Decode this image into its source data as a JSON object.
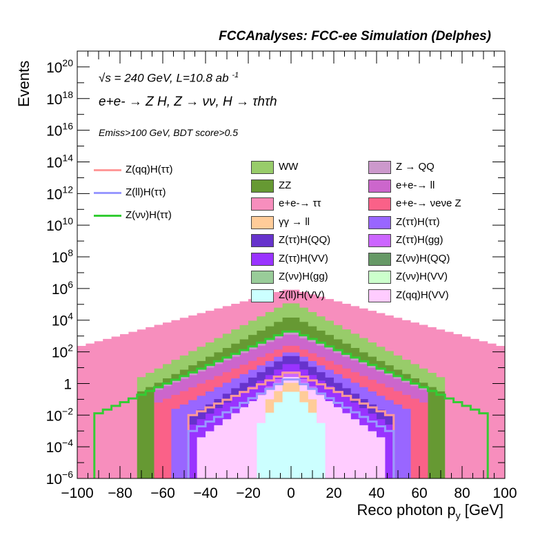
{
  "header": "FCCAnalyses: FCC-ee Simulation (Delphes)",
  "info": {
    "line1": "√s = 240 GeV, L=10.8 ab ",
    "line1_sup": "-1",
    "line2": "e+e- → Z H, Z → νν, H → τhτh",
    "line3": "Emiss>100 GeV, BDT score>0.5"
  },
  "chart_data": {
    "type": "histogram-stacked-log",
    "xlabel": "Reco photon p",
    "xlabel_sub": "y",
    "xlabel_unit": " [GeV]",
    "ylabel": "Events",
    "xlim": [
      -100,
      100
    ],
    "ylim_log10": [
      -6,
      21
    ],
    "xticks": [
      "−100",
      "−80",
      "−60",
      "−40",
      "−20",
      "0",
      "20",
      "40",
      "60",
      "80",
      "100"
    ],
    "yticks": [
      {
        "log": 20,
        "label": "10",
        "sup": "20"
      },
      {
        "log": 18,
        "label": "10",
        "sup": "18"
      },
      {
        "log": 16,
        "label": "10",
        "sup": "16"
      },
      {
        "log": 14,
        "label": "10",
        "sup": "14"
      },
      {
        "log": 12,
        "label": "10",
        "sup": "12"
      },
      {
        "log": 10,
        "label": "10",
        "sup": "10"
      },
      {
        "log": 8,
        "label": "10",
        "sup": "8"
      },
      {
        "log": 6,
        "label": "10",
        "sup": "6"
      },
      {
        "log": 4,
        "label": "10",
        "sup": "4"
      },
      {
        "log": 2,
        "label": "10",
        "sup": "2"
      },
      {
        "log": 0,
        "label": "1",
        "sup": ""
      },
      {
        "log": -2,
        "label": "10",
        "sup": "−2"
      },
      {
        "log": -4,
        "label": "10",
        "sup": "−4"
      },
      {
        "log": -6,
        "label": "10",
        "sup": "−6"
      }
    ],
    "bin_width": 4,
    "stack_envelopes": [
      {
        "name": "e+e-→ ττ",
        "color": "#f78ebd",
        "peak": 6.0,
        "halfwidth": 100,
        "shape": "tri",
        "edge": 2.3
      },
      {
        "name": "WW",
        "color": "#98cc6a",
        "peak": 5.2,
        "halfwidth": 70,
        "shape": "tri",
        "edge": 0.4
      },
      {
        "name": "ZZ",
        "color": "#669933",
        "peak": 4.3,
        "halfwidth": 70,
        "shape": "tri",
        "edge": -0.5
      },
      {
        "name": "Z → QQ",
        "color": "#cc99cc",
        "peak": 3.4,
        "halfwidth": 62,
        "shape": "tri",
        "edge": -0.2
      },
      {
        "name": "e+e-→ ll",
        "color": "#cc66cc",
        "peak": 3.2,
        "halfwidth": 62,
        "shape": "tri",
        "edge": -0.4
      },
      {
        "name": "e+e-→ νeνe Z",
        "color": "#fa6188",
        "peak": 2.5,
        "halfwidth": 62,
        "shape": "tri",
        "edge": -1.2
      },
      {
        "name": "Z(ττ)H(ττ)",
        "color": "#9966ff",
        "peak": 2.1,
        "halfwidth": 54,
        "shape": "tri",
        "edge": -1.6
      },
      {
        "name": "Z(ττ)H(QQ)",
        "color": "#6633cc",
        "peak": 1.9,
        "halfwidth": 46,
        "shape": "tri",
        "edge": -2.0
      },
      {
        "name": "Z(ττ)H(VV)",
        "color": "#9933ff",
        "peak": 1.4,
        "halfwidth": 46,
        "shape": "tri",
        "edge": -2.6
      },
      {
        "name": "Z(ττ)H(gg)",
        "color": "#cc66ff",
        "peak": 1.0,
        "halfwidth": 34,
        "shape": "tri",
        "edge": -3.0
      },
      {
        "name": "Z(qq)H(VV)",
        "color": "#ffccff",
        "peak": 0.6,
        "halfwidth": 42,
        "shape": "tri",
        "edge": -3.4
      },
      {
        "name": "γγ → ll",
        "color": "#ffcc99",
        "peak": 0.3,
        "halfwidth": 10,
        "shape": "tri",
        "edge": -1.0
      },
      {
        "name": "Z(ll)H(VV)",
        "color": "#ccffff",
        "peak": -0.2,
        "halfwidth": 14,
        "shape": "tri",
        "edge": -2.5
      }
    ],
    "lines": [
      {
        "name": "Z(qq)H(ττ)",
        "color": "#ff9999",
        "peak": 0.8,
        "halfwidth": 46,
        "edge": -2.0
      },
      {
        "name": "Z(ll)H(ττ)",
        "color": "#9999ff",
        "peak": 0.4,
        "halfwidth": 46,
        "edge": -3.0
      },
      {
        "name": "Z(νν)H(ττ)",
        "color": "#33cc33",
        "peak": 3.4,
        "halfwidth": 92,
        "edge": -2.0
      }
    ]
  },
  "legend_lines": [
    {
      "label": "Z(qq)H(ττ)",
      "color": "#ff9999"
    },
    {
      "label": "Z(ll)H(ττ)",
      "color": "#9999ff"
    },
    {
      "label": "Z(νν)H(ττ)",
      "color": "#33cc33"
    }
  ],
  "legend_boxes_left": [
    {
      "label": "WW",
      "color": "#98cc6a"
    },
    {
      "label": "ZZ",
      "color": "#669933"
    },
    {
      "label": "e+e-→ ττ",
      "color": "#f78ebd"
    },
    {
      "label": "γγ → ll",
      "color": "#ffcc99"
    },
    {
      "label": "Z(ττ)H(QQ)",
      "color": "#6633cc"
    },
    {
      "label": "Z(ττ)H(VV)",
      "color": "#9933ff"
    },
    {
      "label": "Z(νν)H(gg)",
      "color": "#99cc99"
    },
    {
      "label": "Z(ll)H(VV)",
      "color": "#ccffff"
    }
  ],
  "legend_boxes_right": [
    {
      "label": "Z → QQ",
      "color": "#cc99cc"
    },
    {
      "label": "e+e-→ ll",
      "color": "#cc66cc"
    },
    {
      "label": "e+e-→ νeνe Z",
      "color": "#fa6188"
    },
    {
      "label": "Z(ττ)H(ττ)",
      "color": "#9966ff"
    },
    {
      "label": "Z(ττ)H(gg)",
      "color": "#cc66ff"
    },
    {
      "label": "Z(νν)H(QQ)",
      "color": "#669966"
    },
    {
      "label": "Z(νν)H(VV)",
      "color": "#ccffcc"
    },
    {
      "label": "Z(qq)H(VV)",
      "color": "#ffccff"
    }
  ]
}
